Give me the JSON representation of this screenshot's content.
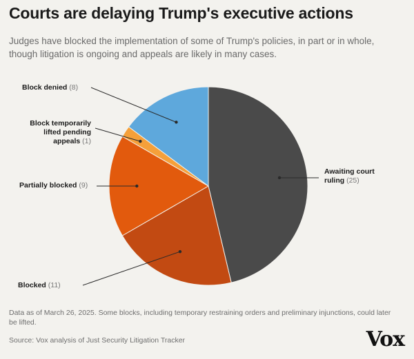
{
  "header": {
    "title": "Courts are delaying Trump's executive actions",
    "subtitle": "Judges have blocked the implementation of some of Trump's policies, in part or in whole, though litigation is ongoing and appeals are likely in many cases."
  },
  "footer": {
    "note": "Data as of March 26, 2025. Some blocks, including temporary restraining orders and preliminary injunctions, could later be lifted.",
    "source": "Source: Vox analysis of Just Security Litigation Tracker",
    "logo": "Vox"
  },
  "chart_data": {
    "type": "pie",
    "slices": [
      {
        "label": "Awaiting court ruling",
        "count_text": "(25)",
        "value": 25,
        "color": "#4a4a4a"
      },
      {
        "label": "Blocked",
        "count_text": "(11)",
        "value": 11,
        "color": "#c24a12"
      },
      {
        "label": "Partially blocked",
        "count_text": "(9)",
        "value": 9,
        "color": "#e25a0d"
      },
      {
        "label": "Block temporarily lifted pending appeals",
        "count_text": "(1)",
        "value": 1,
        "color": "#f5a03a"
      },
      {
        "label": "Block denied",
        "count_text": "(8)",
        "value": 8,
        "color": "#5ea8dc"
      }
    ]
  }
}
